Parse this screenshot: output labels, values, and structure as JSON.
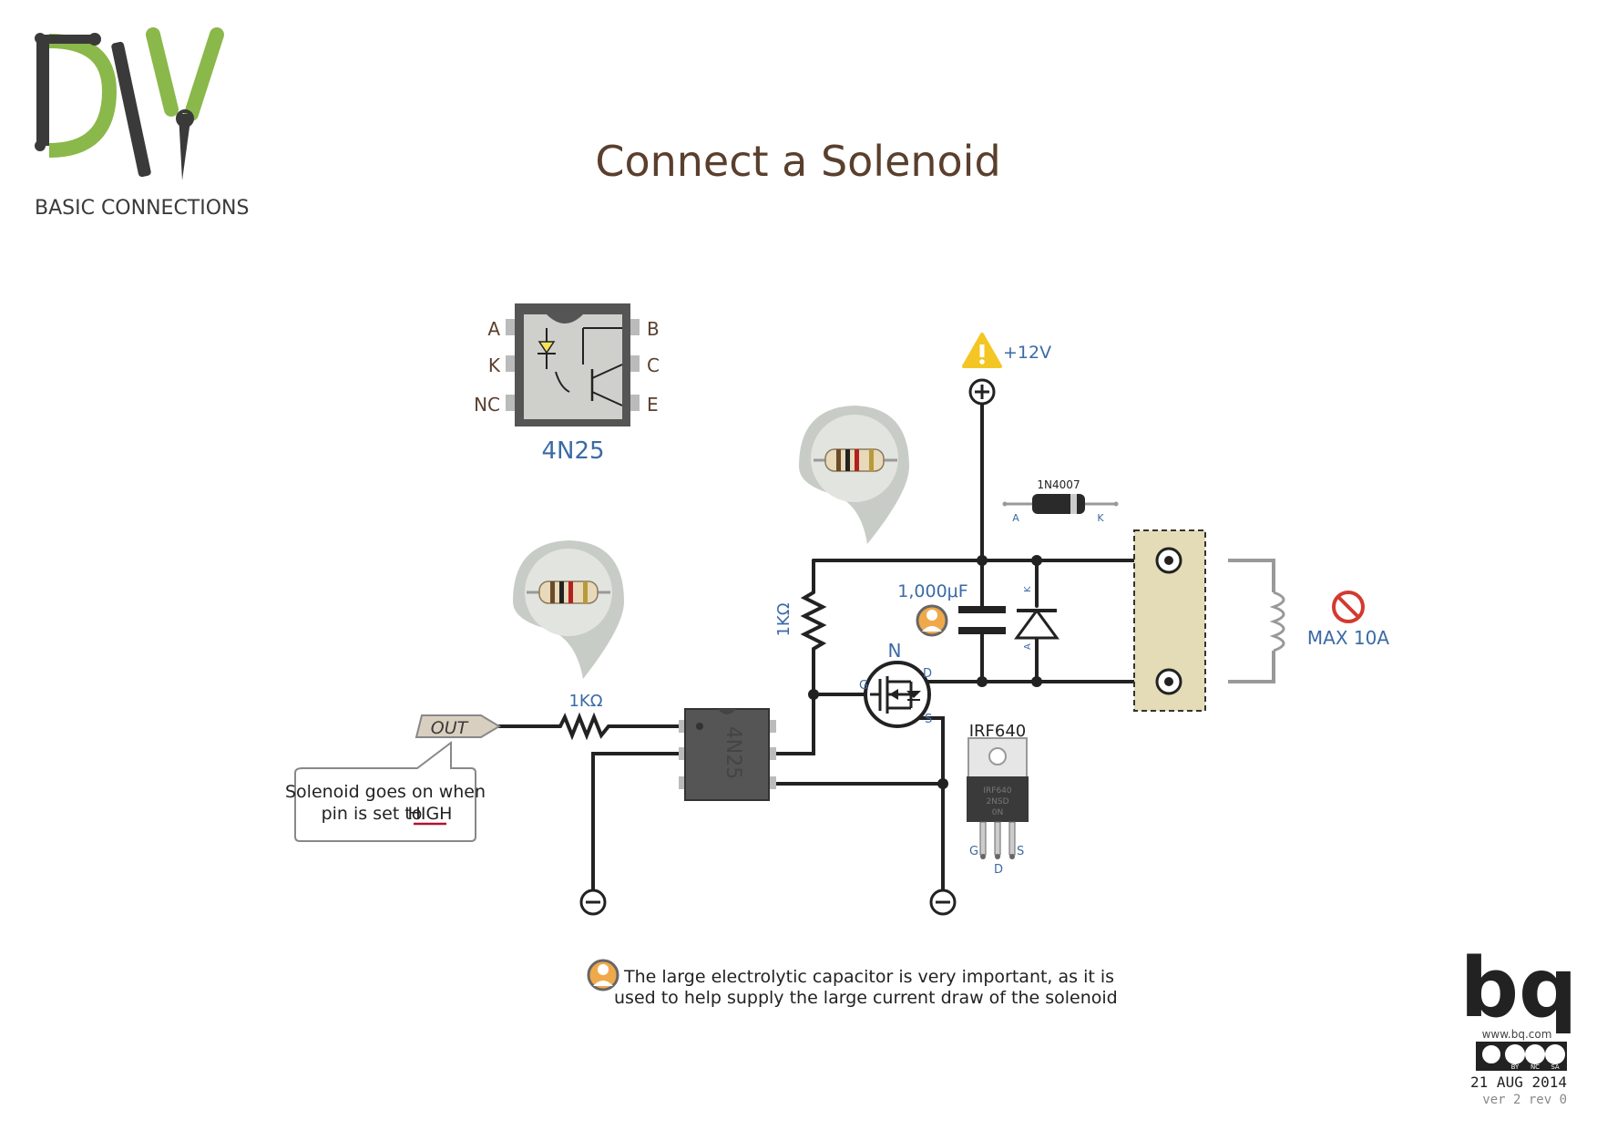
{
  "header": {
    "logo_text": "DIY",
    "subtitle": "BASIC CONNECTIONS",
    "title": "Connect a Solenoid"
  },
  "optocoupler": {
    "name": "4N25",
    "pins_left": [
      "A",
      "K",
      "NC"
    ],
    "pins_right": [
      "B",
      "C",
      "E"
    ],
    "chip_label": "4N25"
  },
  "supply": {
    "label": "+12V"
  },
  "diode": {
    "part": "1N4007",
    "anode": "A",
    "cathode": "K",
    "anode_short": "A",
    "cathode_short": "K"
  },
  "resistors": [
    {
      "label": "1KΩ"
    },
    {
      "label": "1KΩ"
    }
  ],
  "capacitor": {
    "label": "1,000μF"
  },
  "mosfet": {
    "type_label": "N",
    "gate": "G",
    "drain": "D",
    "source": "S",
    "part": "IRF640",
    "pin_g": "G",
    "pin_d": "D",
    "pin_s": "S",
    "package_text": [
      "IRF640",
      "2NSD",
      "0N"
    ]
  },
  "output_pin": {
    "label": "OUT"
  },
  "callout": {
    "line1": "Solenoid goes on when",
    "line2_prefix": "pin is set to ",
    "line2_emph": "HIGH"
  },
  "solenoid": {
    "warning": "MAX 10A"
  },
  "note": {
    "line1": "The large electrolytic capacitor is very important, as it is",
    "line2": "used to help supply the large current draw of the solenoid"
  },
  "footer": {
    "brand": "bq",
    "url": "www.bq.com",
    "license": [
      "BY",
      "NC",
      "SA"
    ],
    "date": "21 AUG 2014",
    "version": "ver 2 rev 0"
  },
  "colors": {
    "green": "#8ab84a",
    "dark": "#3a3a3a",
    "brown": "#5a3f2d",
    "blue": "#3b6aa6",
    "wire": "#222222",
    "pcb_gray": "#555555",
    "terminal_fill": "#e3dcb6",
    "warning_yellow": "#f3c623",
    "prohibit_red": "#d33a2f"
  },
  "icons": [
    "warning-icon",
    "prohibit-icon",
    "info-person-icon",
    "plus-terminal-icon",
    "minus-ground-icon",
    "creative-commons-icon",
    "resistor-icon"
  ]
}
